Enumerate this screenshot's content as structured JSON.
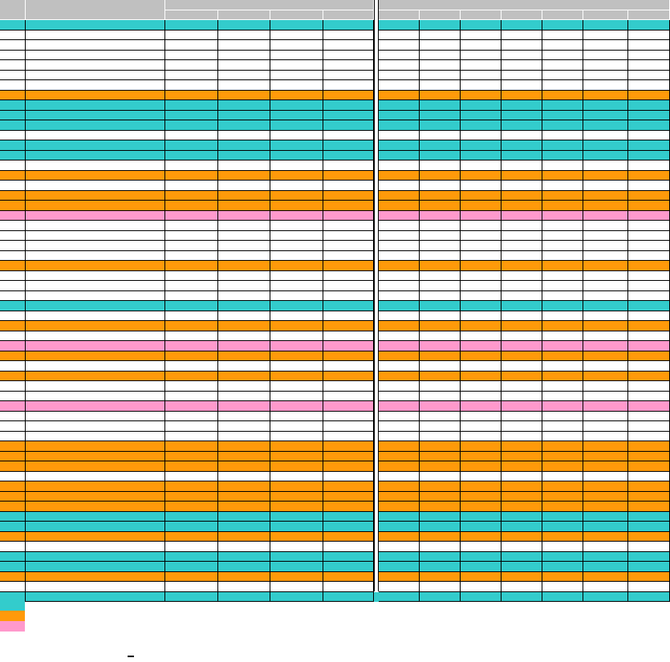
{
  "colors": {
    "teal": "#33cccc",
    "orange": "#ff9a0a",
    "pink": "#ff99cc",
    "white": "#ffffff",
    "header_gray": "#c0c0c0"
  },
  "header": {
    "number_label": "",
    "name_label": "",
    "group_a_label": "",
    "group_b_label": "",
    "group_a_columns": [
      "",
      "",
      "",
      ""
    ],
    "group_b_columns": [
      "",
      "",
      "",
      "",
      "",
      "",
      ""
    ]
  },
  "rows": [
    {
      "fill": "teal",
      "values": []
    },
    {
      "fill": "white",
      "values": []
    },
    {
      "fill": "white",
      "values": []
    },
    {
      "fill": "white",
      "values": []
    },
    {
      "fill": "white",
      "values": []
    },
    {
      "fill": "white",
      "values": []
    },
    {
      "fill": "white",
      "values": []
    },
    {
      "fill": "orange",
      "values": []
    },
    {
      "fill": "teal",
      "values": []
    },
    {
      "fill": "teal",
      "values": []
    },
    {
      "fill": "teal",
      "values": []
    },
    {
      "fill": "white",
      "values": []
    },
    {
      "fill": "teal",
      "values": []
    },
    {
      "fill": "teal",
      "values": []
    },
    {
      "fill": "white",
      "values": []
    },
    {
      "fill": "orange",
      "values": []
    },
    {
      "fill": "white",
      "values": []
    },
    {
      "fill": "orange",
      "values": []
    },
    {
      "fill": "orange",
      "values": []
    },
    {
      "fill": "pink",
      "values": []
    },
    {
      "fill": "white",
      "values": []
    },
    {
      "fill": "white",
      "values": []
    },
    {
      "fill": "white",
      "values": []
    },
    {
      "fill": "white",
      "values": []
    },
    {
      "fill": "orange",
      "values": []
    },
    {
      "fill": "white",
      "values": []
    },
    {
      "fill": "white",
      "values": []
    },
    {
      "fill": "white",
      "values": []
    },
    {
      "fill": "teal",
      "values": []
    },
    {
      "fill": "white",
      "values": []
    },
    {
      "fill": "orange",
      "values": []
    },
    {
      "fill": "white",
      "values": []
    },
    {
      "fill": "pink",
      "values": []
    },
    {
      "fill": "orange",
      "values": []
    },
    {
      "fill": "white",
      "values": []
    },
    {
      "fill": "orange",
      "values": []
    },
    {
      "fill": "white",
      "values": []
    },
    {
      "fill": "white",
      "values": []
    },
    {
      "fill": "pink",
      "values": []
    },
    {
      "fill": "white",
      "values": []
    },
    {
      "fill": "white",
      "values": []
    },
    {
      "fill": "white",
      "values": []
    },
    {
      "fill": "orange",
      "values": []
    },
    {
      "fill": "orange",
      "values": []
    },
    {
      "fill": "orange",
      "values": []
    },
    {
      "fill": "white",
      "values": []
    },
    {
      "fill": "orange",
      "values": []
    },
    {
      "fill": "orange",
      "values": []
    },
    {
      "fill": "orange",
      "values": []
    },
    {
      "fill": "teal",
      "values": []
    },
    {
      "fill": "teal",
      "values": []
    },
    {
      "fill": "orange",
      "values": []
    },
    {
      "fill": "white",
      "values": []
    },
    {
      "fill": "teal",
      "values": []
    },
    {
      "fill": "teal",
      "values": []
    },
    {
      "fill": "orange",
      "values": []
    },
    {
      "fill": "white",
      "values": []
    },
    {
      "fill": "teal",
      "values": []
    }
  ],
  "legend": [
    {
      "fill": "teal",
      "label": ""
    },
    {
      "fill": "orange",
      "label": ""
    },
    {
      "fill": "pink",
      "label": ""
    }
  ],
  "footnote": ""
}
